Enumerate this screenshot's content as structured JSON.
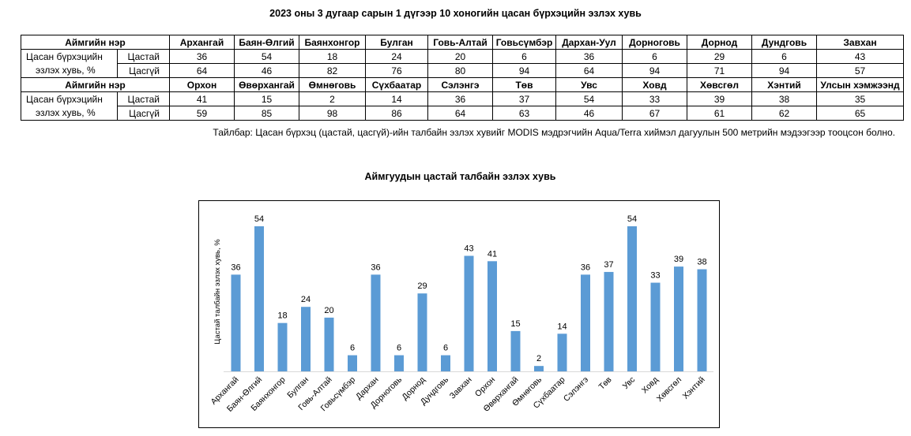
{
  "title": "2023 оны 3 дугаар сарын 1 дүгээр 10 хоногийн цасан бүрхэцийн эзлэх хувь",
  "table": {
    "name_header": "Аймгийн нэр",
    "row_label_line1": "Цасан бүрхэцийн",
    "row_label_line2": "эзлэх хувь, %",
    "sub_thin": "Цастай",
    "sub_thick": "Цасгүй",
    "block1": {
      "names": [
        "Архангай",
        "Баян-Өлгий",
        "Баянхонгор",
        "Булган",
        "Говь-Алтай",
        "Говьсүмбэр",
        "Дархан-Уул",
        "Дорноговь",
        "Дорнод",
        "Дундговь",
        "Завхан"
      ],
      "snow": [
        "36",
        "54",
        "18",
        "24",
        "20",
        "6",
        "36",
        "6",
        "29",
        "6",
        "43"
      ],
      "nosnow": [
        "64",
        "46",
        "82",
        "76",
        "80",
        "94",
        "64",
        "94",
        "71",
        "94",
        "57"
      ]
    },
    "block2": {
      "names": [
        "Орхон",
        "Өвөрхангай",
        "Өмнөговь",
        "Сүхбаатар",
        "Сэлэнгэ",
        "Төв",
        "Увс",
        "Ховд",
        "Хөвсгөл",
        "Хэнтий",
        "Улсын хэмжээнд"
      ],
      "snow": [
        "41",
        "15",
        "2",
        "14",
        "36",
        "37",
        "54",
        "33",
        "39",
        "38",
        "35"
      ],
      "nosnow": [
        "59",
        "85",
        "98",
        "86",
        "64",
        "63",
        "46",
        "67",
        "61",
        "62",
        "65"
      ]
    }
  },
  "note": "Тайлбар: Цасан бүрхэц (цастай, цасгүй)-ийн талбайн эзлэх хувийг MODIS мэдрэгчийн Aqua/Terra хиймэл дагуулын 500 метрийн мэдээгээр тооцсон болно.",
  "chart_data": {
    "type": "bar",
    "title": "Аймгуудын цастай талбайн эзлэх хувь",
    "ylabel": "Цастай талбайн эзлэх хувь, %",
    "xlabel": "",
    "ylim": [
      0,
      60
    ],
    "grid": false,
    "categories": [
      "Архангай",
      "Баян-Өлгий",
      "Баянхонгор",
      "Булган",
      "Говь-Алтай",
      "Говьсүмбэр",
      "Дархан",
      "Дорноговь",
      "Дорнод",
      "Дундговь",
      "Завхан",
      "Орхон",
      "Өвөрхангай",
      "Өмнөговь",
      "Сүхбаатар",
      "Сэлэнгэ",
      "Төв",
      "Увс",
      "Ховд",
      "Хөвсгөл",
      "Хэнтий"
    ],
    "values": [
      36,
      54,
      18,
      24,
      20,
      6,
      36,
      6,
      29,
      6,
      43,
      41,
      15,
      2,
      14,
      36,
      37,
      54,
      33,
      39,
      38
    ],
    "bar_color": "#5b9bd5"
  }
}
